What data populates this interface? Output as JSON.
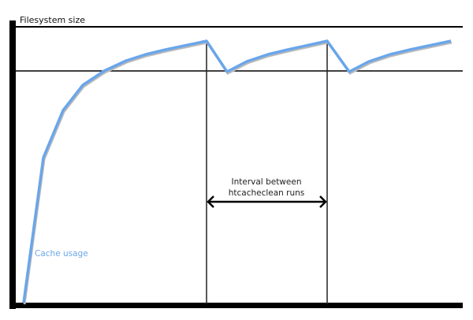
{
  "y_axis_label": "Filesystem size",
  "curve_label": "Cache usage",
  "interval_label_line1": "Interval between",
  "interval_label_line2": "htcacheclean runs",
  "colors": {
    "curve": "#6aa6ea",
    "axes": "#000000"
  }
}
